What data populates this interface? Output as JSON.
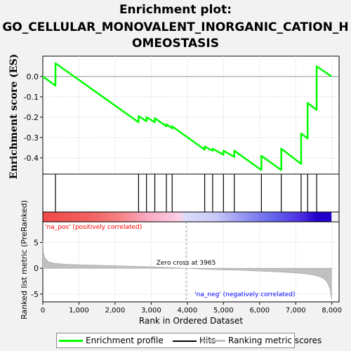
{
  "title_lines": [
    "Enrichment plot:",
    "GO_CELLULAR_MONOVALENT_INORGANIC_CATION_H",
    "OMEOSTASIS"
  ],
  "legend": {
    "enrichment": "Enrichment profile",
    "hits": "Hits",
    "ranking": "Ranking metric scores"
  },
  "colors": {
    "enrichment": "#00ff00",
    "hits": "#000000",
    "ranking": "#c0c0c0",
    "positive": "#ff0000",
    "negative": "#0000ff"
  },
  "chart_data": [
    {
      "type": "line",
      "panel": "enrichment",
      "ylabel": "Enrichment score (ES)",
      "ylim": [
        -0.48,
        0.1
      ],
      "xlim": [
        0,
        8200
      ],
      "yticks": [
        "0.0",
        "-0.1",
        "-0.2",
        "-0.3",
        "-0.4"
      ],
      "ytick_values": [
        0.0,
        -0.1,
        -0.2,
        -0.3,
        -0.4
      ],
      "grid": true,
      "series": [
        {
          "x": [
            0,
            350,
            350,
            2650,
            2650,
            2870,
            2870,
            3100,
            3100,
            3420,
            3420,
            3580,
            3580,
            4480,
            4480,
            4700,
            4700,
            5000,
            5000,
            5300,
            5300,
            6050,
            6050,
            6600,
            6600,
            7150,
            7150,
            7330,
            7330,
            7580,
            7580,
            7990
          ],
          "y": [
            0.0,
            -0.045,
            0.065,
            -0.225,
            -0.195,
            -0.22,
            -0.2,
            -0.225,
            -0.205,
            -0.245,
            -0.235,
            -0.255,
            -0.245,
            -0.36,
            -0.345,
            -0.365,
            -0.355,
            -0.385,
            -0.365,
            -0.395,
            -0.365,
            -0.46,
            -0.39,
            -0.46,
            -0.355,
            -0.43,
            -0.28,
            -0.305,
            -0.13,
            -0.165,
            0.05,
            0.0
          ]
        }
      ]
    },
    {
      "type": "scatter",
      "panel": "hits",
      "x": [
        350,
        2650,
        2870,
        3100,
        3420,
        3580,
        4480,
        4700,
        5000,
        5300,
        6050,
        6600,
        7150,
        7330,
        7580
      ]
    },
    {
      "type": "area",
      "panel": "ranking",
      "ylabel": "Ranked list metric (PreRanked)",
      "xlabel": "Rank in Ordered Dataset",
      "xlim": [
        0,
        8200
      ],
      "ylim": [
        -6.5,
        9
      ],
      "xticks": [
        "0",
        "1,000",
        "2,000",
        "3,000",
        "4,000",
        "5,000",
        "6,000",
        "7,000",
        "8,000"
      ],
      "xtick_values": [
        0,
        1000,
        2000,
        3000,
        4000,
        5000,
        6000,
        7000,
        8000
      ],
      "yticks": [
        "5",
        "0",
        "-5"
      ],
      "ytick_values": [
        5,
        0,
        -5
      ],
      "grid": true,
      "x": [
        0,
        20,
        60,
        150,
        300,
        600,
        1000,
        1500,
        2000,
        2500,
        3000,
        3500,
        3965,
        4500,
        5000,
        5500,
        6000,
        6500,
        7000,
        7300,
        7500,
        7650,
        7750,
        7850,
        7900,
        7950,
        7990
      ],
      "y": [
        5.3,
        3.0,
        2.0,
        1.3,
        1.0,
        0.8,
        0.7,
        0.6,
        0.5,
        0.4,
        0.3,
        0.15,
        0.0,
        -0.2,
        -0.3,
        -0.4,
        -0.55,
        -0.7,
        -0.9,
        -1.1,
        -1.35,
        -1.6,
        -1.9,
        -2.5,
        -3.2,
        -4.0,
        -6.0
      ],
      "annotations": {
        "zero_cross": "Zero cross at 3965",
        "zero_cross_x": 3965,
        "pos_label": "'na_pos' (positively correlated)",
        "neg_label": "'na_neg' (negatively correlated)"
      }
    }
  ]
}
